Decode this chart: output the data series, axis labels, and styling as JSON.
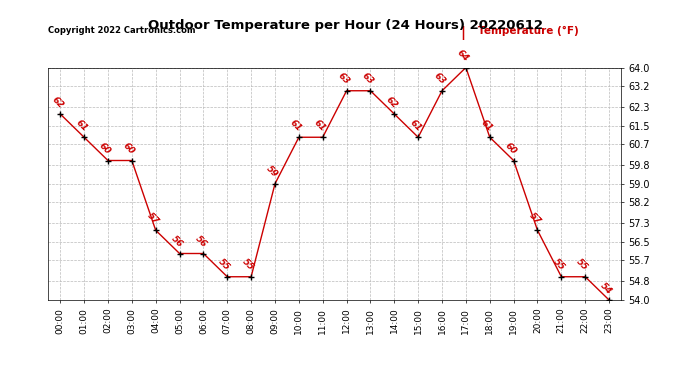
{
  "title": "Outdoor Temperature per Hour (24 Hours) 20220612",
  "copyright": "Copyright 2022 Cartronics.com",
  "legend_label": "Temperature (°F)",
  "hours": [
    0,
    1,
    2,
    3,
    4,
    5,
    6,
    7,
    8,
    9,
    10,
    11,
    12,
    13,
    14,
    15,
    16,
    17,
    18,
    19,
    20,
    21,
    22,
    23
  ],
  "temps": [
    62,
    61,
    60,
    60,
    57,
    56,
    56,
    55,
    55,
    59,
    61,
    61,
    63,
    63,
    62,
    61,
    63,
    64,
    61,
    60,
    57,
    55,
    55,
    54
  ],
  "line_color": "#cc0000",
  "marker_color": "#000000",
  "grid_color": "#bbbbbb",
  "bg_color": "#ffffff",
  "title_color": "#000000",
  "copyright_color": "#000000",
  "legend_color": "#cc0000",
  "ylim_min": 54.0,
  "ylim_max": 64.0,
  "yticks": [
    54.0,
    54.8,
    55.7,
    56.5,
    57.3,
    58.2,
    59.0,
    59.8,
    60.7,
    61.5,
    62.3,
    63.2,
    64.0
  ]
}
